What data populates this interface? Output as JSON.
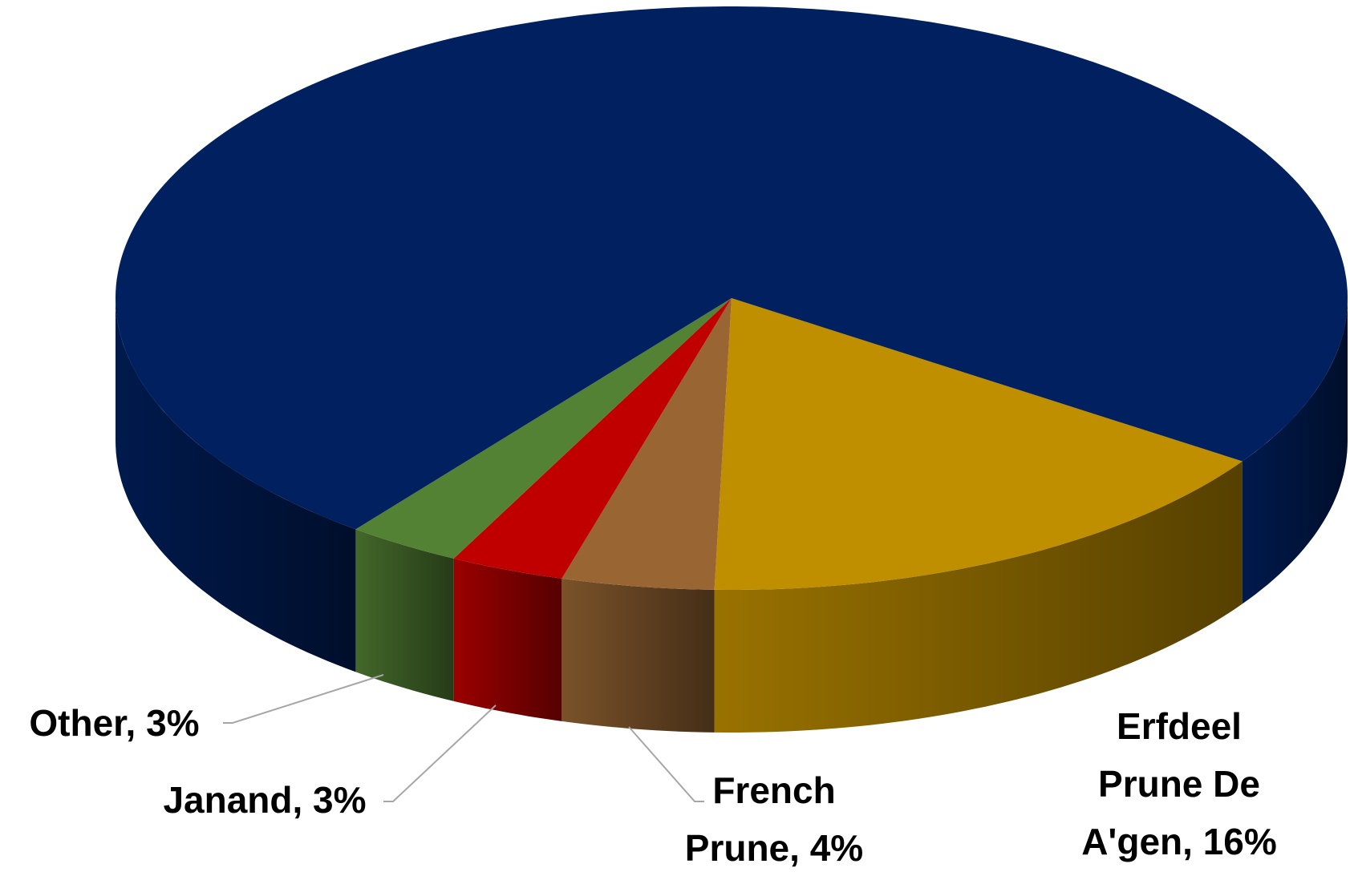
{
  "chart_data": {
    "type": "pie",
    "values": [
      16,
      4,
      3,
      3,
      74
    ],
    "value_labels": [
      "Erfdeel Prune De A'gen, 16%",
      "French Prune, 4%",
      "Janand, 3%",
      "Other, 3%",
      null
    ],
    "colors": [
      "#bf8f00",
      "#996633",
      "#c00000",
      "#548235",
      "#002060"
    ]
  }
}
